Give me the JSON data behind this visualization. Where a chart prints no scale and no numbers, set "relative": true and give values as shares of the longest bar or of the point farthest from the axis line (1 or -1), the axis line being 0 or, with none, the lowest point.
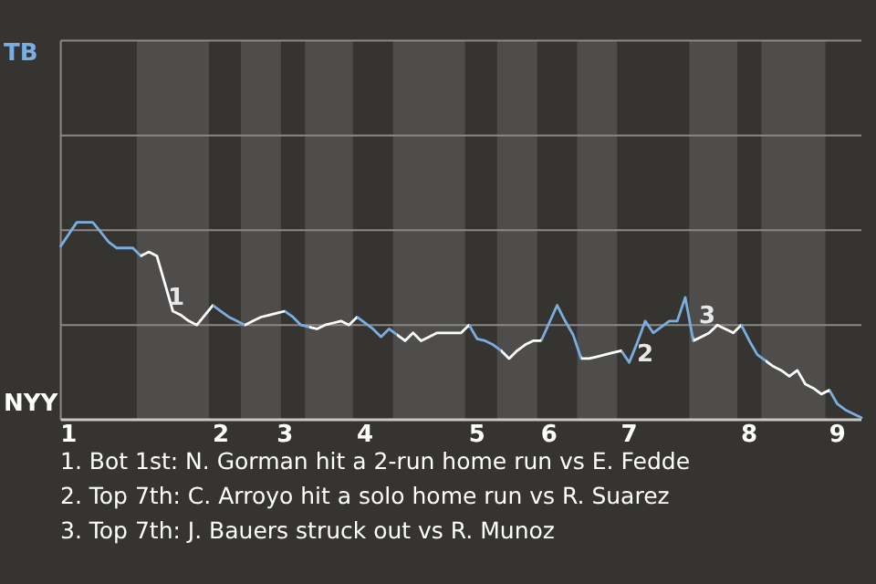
{
  "chart_data": {
    "type": "line",
    "relative": true,
    "categories": [
      null,
      "1",
      null,
      null,
      null,
      null,
      null,
      null,
      null,
      null,
      null,
      null,
      null,
      null,
      null,
      null,
      null,
      null,
      null,
      null,
      "2",
      null,
      null,
      null,
      null,
      null,
      null,
      null,
      "3",
      null,
      null,
      null,
      null,
      null,
      null,
      null,
      null,
      null,
      "4",
      null,
      null,
      null,
      null,
      null,
      null,
      null,
      null,
      null,
      null,
      null,
      null,
      null,
      "5",
      null,
      null,
      null,
      null,
      null,
      null,
      null,
      null,
      "6",
      null,
      null,
      null,
      null,
      null,
      null,
      null,
      null,
      null,
      "7",
      null,
      null,
      null,
      null,
      null,
      null,
      null,
      null,
      null,
      null,
      null,
      null,
      null,
      null,
      "8",
      null,
      null,
      null,
      null,
      null,
      null,
      null,
      null,
      null,
      null,
      "9",
      null,
      null,
      null
    ],
    "marker": "none",
    "line_style": "solid",
    "ref_lines": [
      {
        "axis": "y",
        "value": 0.48,
        "color": "#8a8987"
      },
      {
        "axis": "y",
        "value": 0.96,
        "color": "#8a8987"
      },
      {
        "axis": "y",
        "value": 1.44,
        "color": "#8a8987"
      },
      {
        "axis": "y",
        "value": 1.92,
        "color": "#8a8987"
      }
    ],
    "series": [
      {
        "values": [
          0.88,
          0.94,
          1,
          1,
          1,
          0.95,
          0.9,
          0.87,
          0.87,
          0.87,
          0.83,
          0.85,
          0.83,
          0.69,
          0.55,
          0.53,
          0.5,
          0.48,
          0.53,
          0.58,
          0.55,
          0.52,
          0.5,
          0.48,
          0.5,
          0.52,
          0.53,
          0.54,
          0.55,
          0.52,
          0.48,
          0.47,
          0.46,
          0.48,
          0.49,
          0.5,
          0.48,
          0.52,
          0.49,
          0.46,
          0.42,
          0.46,
          0.43,
          0.4,
          0.44,
          0.4,
          0.42,
          0.44,
          0.44,
          0.44,
          0.44,
          0.48,
          0.41,
          0.4,
          0.38,
          0.35,
          0.31,
          0.35,
          0.38,
          0.4,
          0.4,
          0.49,
          0.58,
          0.5,
          0.43,
          0.31,
          0.31,
          0.32,
          0.33,
          0.34,
          0.35,
          0.29,
          0.39,
          0.5,
          0.44,
          0.47,
          0.5,
          0.5,
          0.62,
          0.4,
          0.42,
          0.44,
          0.48,
          0.46,
          0.44,
          0.48,
          0.4,
          0.33,
          0.3,
          0.27,
          0.25,
          0.22,
          0.25,
          0.18,
          0.16,
          0.13,
          0.15,
          0.08,
          0.05,
          0.03,
          0.01
        ],
        "colors": [
          "#7aaee0",
          "#7aaee0",
          "#7aaee0",
          "#7aaee0",
          "#7aaee0",
          "#7aaee0",
          "#7aaee0",
          "#7aaee0",
          "#7aaee0",
          "#7aaee0",
          "#ffffff",
          "#ffffff",
          "#ffffff",
          "#ffffff",
          "#ffffff",
          "#ffffff",
          "#ffffff",
          "#ffffff",
          "#ffffff",
          "#7aaee0",
          "#7aaee0",
          "#7aaee0",
          "#7aaee0",
          "#ffffff",
          "#ffffff",
          "#ffffff",
          "#ffffff",
          "#ffffff",
          "#7aaee0",
          "#7aaee0",
          "#7aaee0",
          "#ffffff",
          "#ffffff",
          "#ffffff",
          "#ffffff",
          "#ffffff",
          "#ffffff",
          "#7aaee0",
          "#7aaee0",
          "#7aaee0",
          "#7aaee0",
          "#7aaee0",
          "#ffffff",
          "#ffffff",
          "#ffffff",
          "#ffffff",
          "#ffffff",
          "#ffffff",
          "#ffffff",
          "#ffffff",
          "#ffffff",
          "#7aaee0",
          "#7aaee0",
          "#7aaee0",
          "#7aaee0",
          "#ffffff",
          "#ffffff",
          "#ffffff",
          "#ffffff",
          "#ffffff",
          "#7aaee0",
          "#7aaee0",
          "#7aaee0",
          "#7aaee0",
          "#7aaee0",
          "#ffffff",
          "#ffffff",
          "#ffffff",
          "#ffffff",
          "#ffffff",
          "#7aaee0",
          "#7aaee0",
          "#7aaee0",
          "#7aaee0",
          "#7aaee0",
          "#7aaee0",
          "#7aaee0",
          "#7aaee0",
          "#7aaee0",
          "#ffffff",
          "#ffffff",
          "#ffffff",
          "#ffffff",
          "#ffffff",
          "#ffffff",
          "#7aaee0",
          "#7aaee0",
          "#7aaee0",
          "#ffffff",
          "#ffffff",
          "#ffffff",
          "#ffffff",
          "#ffffff",
          "#ffffff",
          "#ffffff",
          "#ffffff",
          "#7aaee0",
          "#7aaee0",
          "#7aaee0",
          "#7aaee0",
          "#7aaee0"
        ]
      }
    ],
    "annotations": [
      "TB",
      "NYY",
      "1",
      "2",
      "3",
      "1. Bot 1st: N. Gorman hit a 2-run home run vs E. Fedde",
      "2. Top 7th: C. Arroyo hit a solo home run vs R. Suarez",
      "3. Top 7th: J. Bauers struck out vs R. Munoz"
    ]
  }
}
